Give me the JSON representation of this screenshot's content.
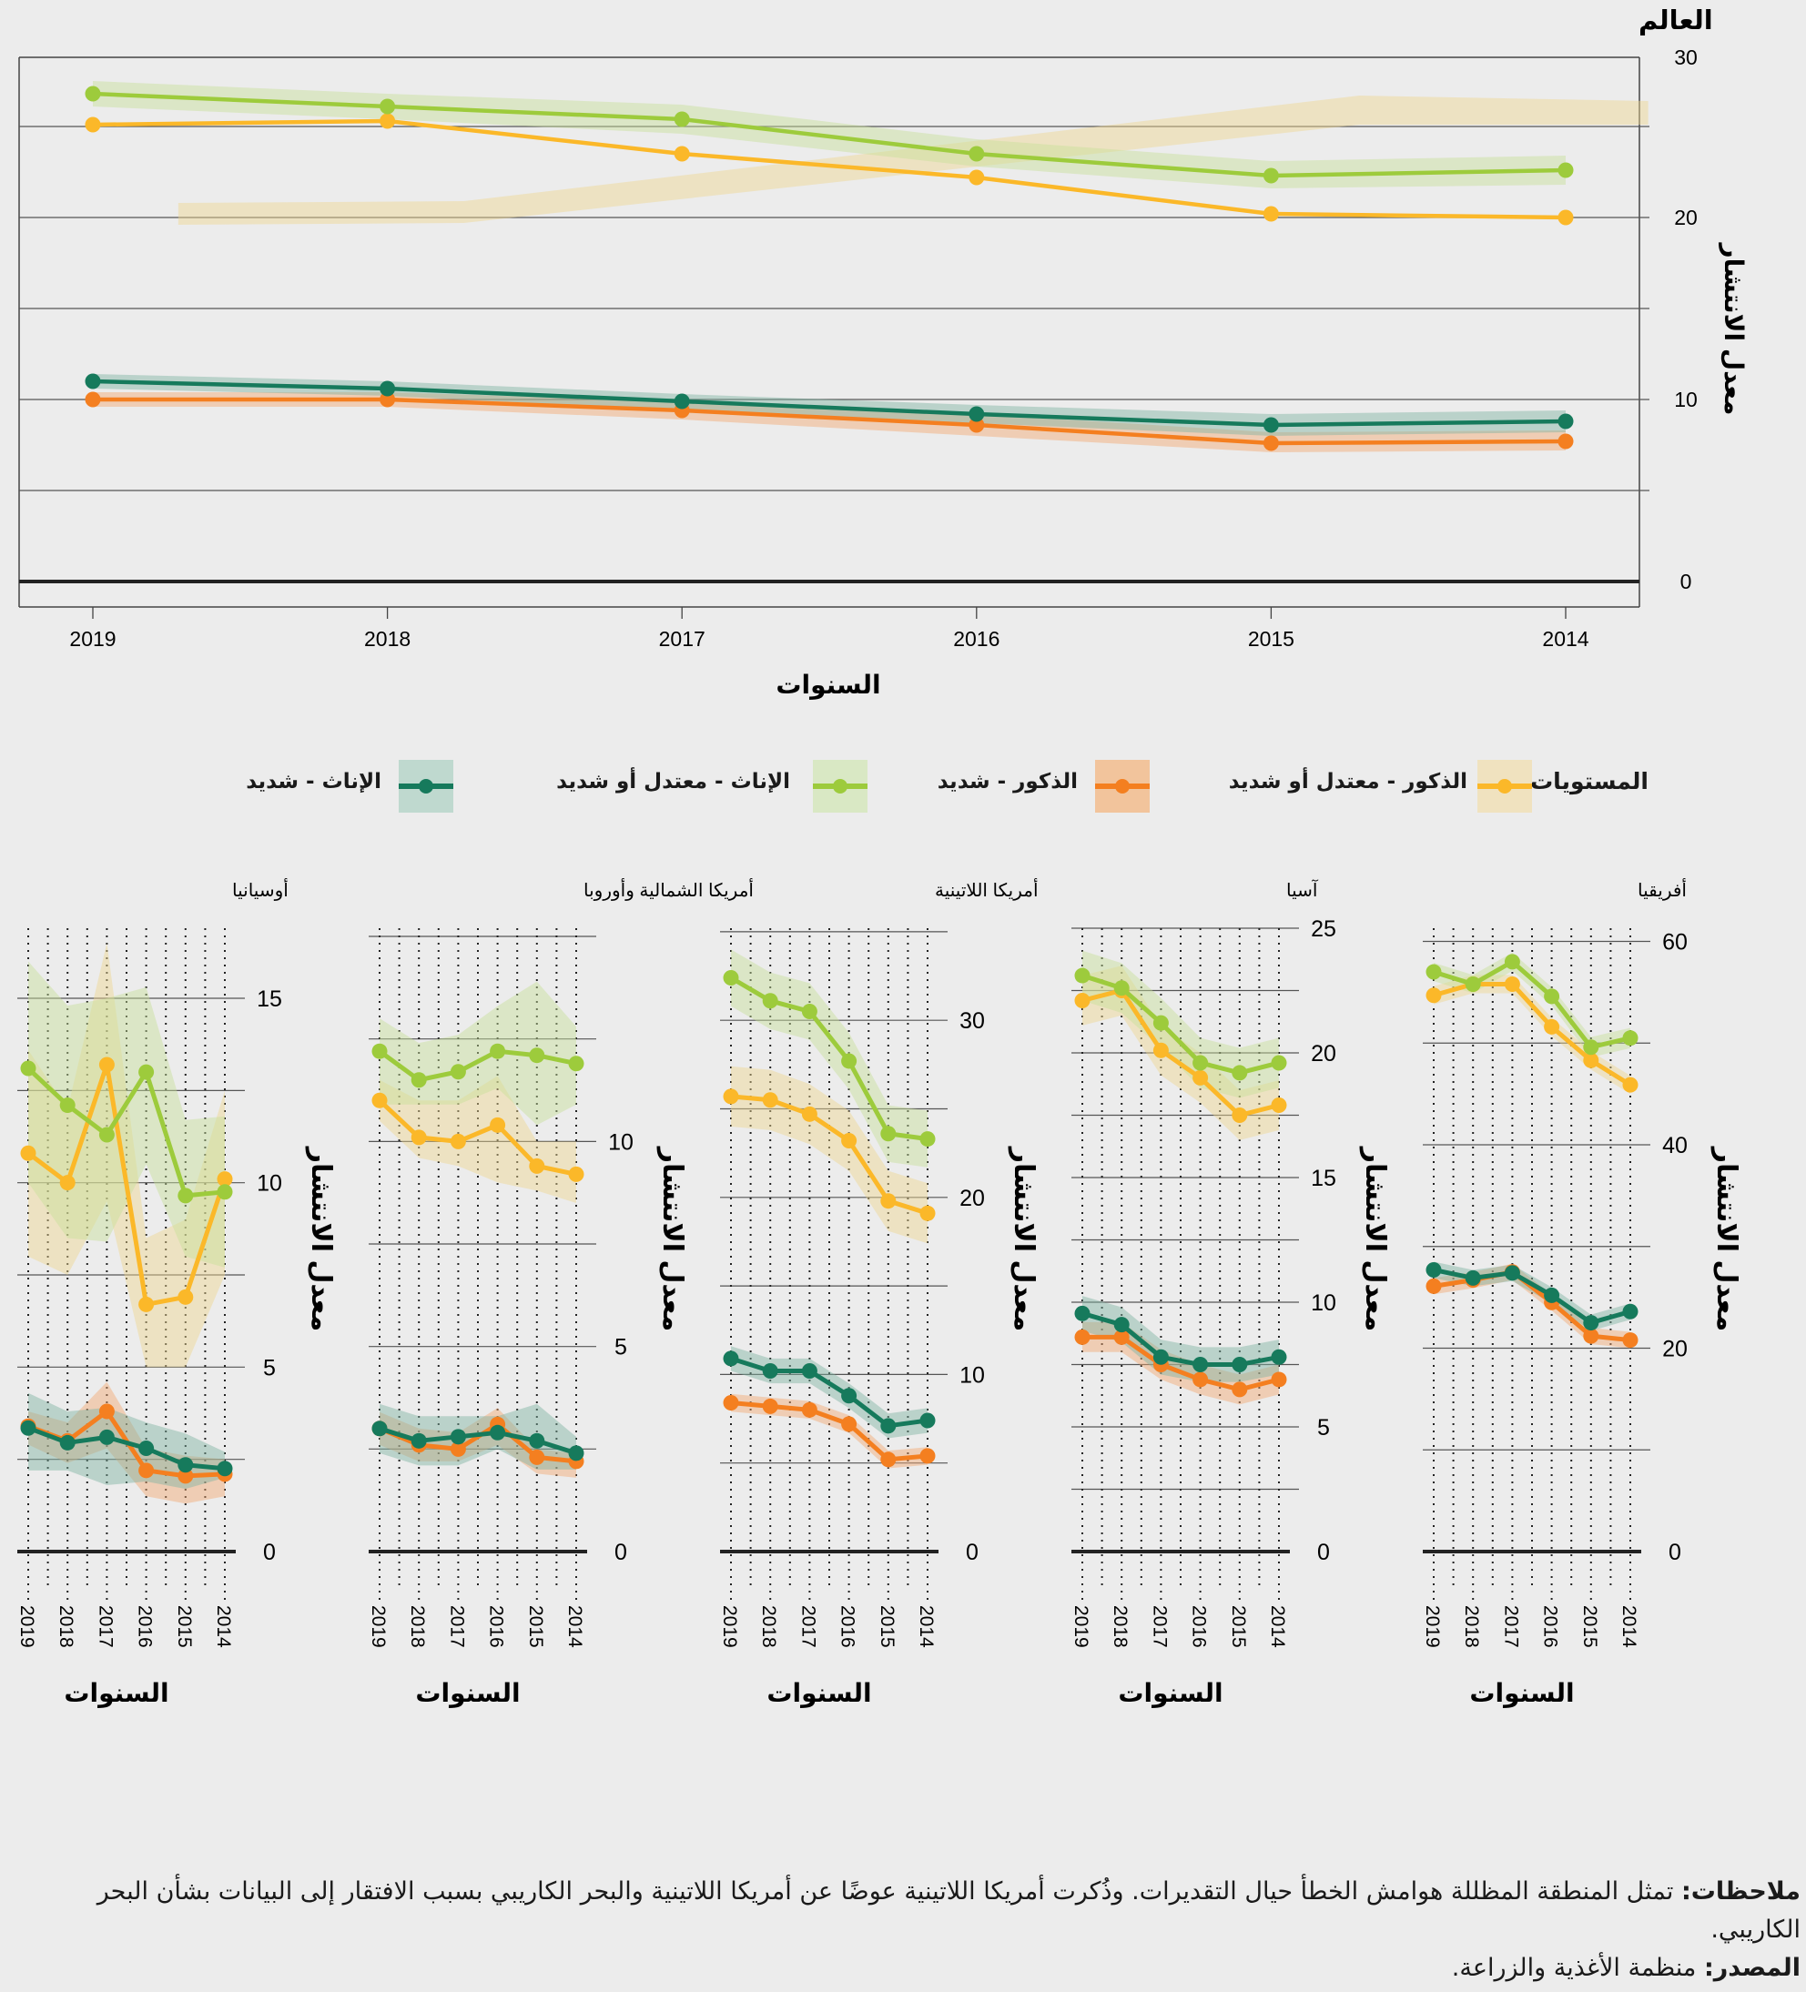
{
  "legend": {
    "title": "المستويات",
    "items": [
      {
        "label": "الذكور - معتدل أو شديد",
        "color": "#fbb829",
        "band": "#f0e2bf"
      },
      {
        "label": "الذكور - شديد",
        "color": "#f47f20",
        "band": "#f2c49c"
      },
      {
        "label": "الإناث - معتدل أو شديد",
        "color": "#9dcb3c",
        "band": "#d9e8c4"
      },
      {
        "label": "الإناث - شديد",
        "color": "#167a5c",
        "band": "#bfd9cf"
      }
    ]
  },
  "notes": {
    "notes_label": "ملاحظات:",
    "notes_text": " تمثل المنطقة المظللة هوامش الخطأ حيال التقديرات. وذُكرت أمريكا اللاتينية عوضًا عن أمريكا اللاتينية والبحر الكاريبي بسبب الافتقار إلى البيانات بشأن البحر الكاريبي.",
    "source_label": "المصدر:",
    "source_text": " منظمة الأغذية والزراعة."
  },
  "chart_data": [
    {
      "type": "line",
      "title": "العالم",
      "xlabel": "السنوات",
      "ylabel": "معدل الانتشار",
      "x": [
        2019,
        2018,
        2017,
        2016,
        2015,
        2014
      ],
      "ylim": [
        0,
        28.8
      ],
      "yticks": [
        0,
        10,
        20,
        30
      ],
      "grid_step": 5,
      "grid": true,
      "series": [
        {
          "name": "الذكور - معتدل أو شديد",
          "color": "#fbb829",
          "values": [
            25.1,
            25.3,
            23.5,
            22.2,
            20.2,
            20.0
          ],
          "band_drawn": {
            "x": [
              2018.71,
              2017.74,
              2014.7,
              2013.72
            ],
            "lower": [
              19.6,
              19.7,
              25.1,
              25.1
            ],
            "upper": [
              20.8,
              20.9,
              26.7,
              26.4
            ]
          }
        },
        {
          "name": "الذكور - شديد",
          "color": "#f47f20",
          "values": [
            10.0,
            10.0,
            9.4,
            8.6,
            7.6,
            7.7
          ],
          "lower": [
            9.6,
            9.6,
            8.9,
            8.0,
            7.1,
            7.2
          ],
          "upper": [
            10.4,
            10.4,
            9.9,
            9.2,
            8.2,
            8.3
          ]
        },
        {
          "name": "الإناث - معتدل أو شديد",
          "color": "#9dcb3c",
          "values": [
            26.8,
            26.1,
            25.4,
            23.5,
            22.3,
            22.6
          ],
          "lower": [
            26.1,
            25.4,
            24.6,
            22.8,
            21.6,
            21.8
          ],
          "upper": [
            27.5,
            26.8,
            26.2,
            24.3,
            23.1,
            23.4
          ]
        },
        {
          "name": "الإناث - شديد",
          "color": "#167a5c",
          "values": [
            11.0,
            10.6,
            9.9,
            9.2,
            8.6,
            8.8
          ],
          "lower": [
            10.6,
            10.2,
            9.4,
            8.7,
            8.0,
            8.2
          ],
          "upper": [
            11.4,
            11.0,
            10.3,
            9.7,
            9.2,
            9.4
          ]
        }
      ]
    },
    {
      "type": "line",
      "title": "أفريقيا",
      "xlabel": "السنوات",
      "ylabel": "معدل الانتشار",
      "x": [
        2019,
        2018,
        2017,
        2016,
        2015,
        2014
      ],
      "ylim": [
        0,
        61.3
      ],
      "yticks": [
        0,
        20,
        40,
        60
      ],
      "grid_step": 10,
      "grid": true,
      "series": [
        {
          "name": "الذكور - معتدل أو شديد",
          "color": "#fbb829",
          "values": [
            54.7,
            55.8,
            55.8,
            51.6,
            48.3,
            45.9
          ],
          "lower": [
            53.8,
            54.9,
            54.9,
            50.7,
            47.4,
            45.0
          ],
          "upper": [
            55.6,
            56.7,
            56.7,
            52.5,
            49.2,
            46.8
          ]
        },
        {
          "name": "الذكور - شديد",
          "color": "#f47f20",
          "values": [
            26.1,
            26.7,
            27.5,
            24.5,
            21.2,
            20.8
          ],
          "lower": [
            25.3,
            25.9,
            26.7,
            23.7,
            20.4,
            20.0
          ],
          "upper": [
            26.9,
            27.5,
            28.3,
            25.3,
            22.0,
            21.6
          ]
        },
        {
          "name": "الإناث - معتدل أو شديد",
          "color": "#9dcb3c",
          "values": [
            57.0,
            55.8,
            58.0,
            54.6,
            49.6,
            50.5
          ],
          "lower": [
            56.1,
            54.9,
            57.1,
            53.7,
            48.6,
            49.5
          ],
          "upper": [
            57.9,
            56.7,
            58.9,
            55.5,
            50.6,
            51.5
          ]
        },
        {
          "name": "الإناث - شديد",
          "color": "#167a5c",
          "values": [
            27.7,
            26.9,
            27.4,
            25.2,
            22.5,
            23.6
          ],
          "lower": [
            26.9,
            26.1,
            26.6,
            24.4,
            21.7,
            22.8
          ],
          "upper": [
            28.5,
            27.7,
            28.2,
            26.0,
            23.3,
            24.4
          ]
        }
      ]
    },
    {
      "type": "line",
      "title": "آسيا",
      "xlabel": "السنوات",
      "ylabel": "معدل الانتشار",
      "x": [
        2019,
        2018,
        2017,
        2016,
        2015,
        2014
      ],
      "ylim": [
        0,
        25
      ],
      "yticks": [
        0,
        5,
        10,
        15,
        20,
        25
      ],
      "grid_step": 2.5,
      "grid": true,
      "series": [
        {
          "name": "الذكور - معتدل أو شديد",
          "color": "#fbb829",
          "values": [
            22.1,
            22.5,
            20.1,
            19.0,
            17.5,
            17.9
          ],
          "lower": [
            21.1,
            21.5,
            19.1,
            18.0,
            16.5,
            16.9
          ],
          "upper": [
            23.1,
            23.5,
            21.1,
            20.0,
            18.5,
            18.9
          ]
        },
        {
          "name": "الذكور - شديد",
          "color": "#f47f20",
          "values": [
            8.6,
            8.6,
            7.5,
            6.9,
            6.5,
            6.9
          ],
          "lower": [
            8.0,
            8.0,
            6.9,
            6.3,
            5.9,
            6.3
          ],
          "upper": [
            9.2,
            9.2,
            8.1,
            7.5,
            7.1,
            7.5
          ]
        },
        {
          "name": "الإناث - معتدل أو شديد",
          "color": "#9dcb3c",
          "values": [
            23.1,
            22.6,
            21.2,
            19.6,
            19.2,
            19.6
          ],
          "lower": [
            22.1,
            21.6,
            20.2,
            18.6,
            18.2,
            18.6
          ],
          "upper": [
            24.1,
            23.6,
            22.2,
            20.6,
            20.2,
            20.6
          ]
        },
        {
          "name": "الإناث - شديد",
          "color": "#167a5c",
          "values": [
            9.55,
            9.1,
            7.8,
            7.5,
            7.5,
            7.8
          ],
          "lower": [
            8.85,
            8.4,
            7.1,
            6.8,
            6.8,
            7.1
          ],
          "upper": [
            10.25,
            9.8,
            8.5,
            8.2,
            8.2,
            8.5
          ]
        }
      ]
    },
    {
      "type": "line",
      "title": "أمريكا اللاتينية",
      "xlabel": "السنوات",
      "ylabel": "معدل الانتشار",
      "x": [
        2019,
        2018,
        2017,
        2016,
        2015,
        2014
      ],
      "ylim": [
        0,
        35.2
      ],
      "yticks": [
        0,
        10,
        20,
        30
      ],
      "grid_step": 5,
      "grid": true,
      "series": [
        {
          "name": "الذكور - معتدل أو شديد",
          "color": "#fbb829",
          "values": [
            25.7,
            25.5,
            24.7,
            23.2,
            19.8,
            19.1
          ],
          "lower": [
            24.0,
            23.8,
            23.0,
            21.5,
            18.1,
            17.4
          ],
          "upper": [
            27.4,
            27.2,
            26.4,
            24.9,
            21.5,
            20.8
          ]
        },
        {
          "name": "الذكور - شديد",
          "color": "#f47f20",
          "values": [
            8.4,
            8.2,
            8.0,
            7.2,
            5.2,
            5.4
          ],
          "lower": [
            7.9,
            7.7,
            7.5,
            6.7,
            4.7,
            4.9
          ],
          "upper": [
            8.9,
            8.7,
            8.5,
            7.7,
            5.7,
            5.9
          ]
        },
        {
          "name": "الإناث - معتدل أو شديد",
          "color": "#9dcb3c",
          "values": [
            32.4,
            31.1,
            30.5,
            27.7,
            23.6,
            23.3
          ],
          "lower": [
            30.8,
            29.5,
            28.9,
            26.1,
            22.0,
            21.7
          ],
          "upper": [
            34.0,
            32.7,
            32.1,
            29.3,
            25.2,
            24.9
          ]
        },
        {
          "name": "الإناث - شديد",
          "color": "#167a5c",
          "values": [
            10.9,
            10.2,
            10.2,
            8.8,
            7.1,
            7.4
          ],
          "lower": [
            10.2,
            9.5,
            9.5,
            8.1,
            6.4,
            6.7
          ],
          "upper": [
            11.6,
            10.9,
            10.9,
            9.5,
            7.8,
            8.1
          ]
        }
      ]
    },
    {
      "type": "line",
      "title": "أمريكا الشمالية وأوروبا",
      "xlabel": "السنوات",
      "ylabel": "معدل الانتشار",
      "x": [
        2019,
        2018,
        2017,
        2016,
        2015,
        2014
      ],
      "ylim": [
        0,
        15.2
      ],
      "yticks": [
        0,
        5,
        10
      ],
      "grid_step": 2.5,
      "grid": true,
      "series": [
        {
          "name": "الذكور - معتدل أو شديد",
          "color": "#fbb829",
          "values": [
            11.0,
            10.1,
            10.0,
            10.4,
            9.4,
            9.2
          ],
          "lower": [
            10.5,
            9.6,
            9.4,
            9.0,
            8.8,
            8.5
          ],
          "upper": [
            11.5,
            11.0,
            11.0,
            11.6,
            10.0,
            10.0
          ]
        },
        {
          "name": "الذكور - شديد",
          "color": "#f47f20",
          "values": [
            3.0,
            2.6,
            2.5,
            3.1,
            2.3,
            2.2
          ],
          "lower": [
            2.6,
            2.2,
            2.2,
            2.6,
            1.9,
            1.8
          ],
          "upper": [
            3.4,
            3.0,
            2.9,
            3.5,
            2.5,
            2.4
          ]
        },
        {
          "name": "الإناث - معتدل أو شديد",
          "color": "#9dcb3c",
          "values": [
            12.2,
            11.5,
            11.7,
            12.2,
            12.1,
            11.9
          ],
          "lower": [
            10.9,
            10.9,
            10.9,
            11.3,
            10.4,
            10.9
          ],
          "upper": [
            13.0,
            12.4,
            12.6,
            13.3,
            13.9,
            12.8
          ]
        },
        {
          "name": "الإناث - شديد",
          "color": "#167a5c",
          "values": [
            3.0,
            2.7,
            2.8,
            2.9,
            2.7,
            2.4
          ],
          "lower": [
            2.4,
            2.1,
            2.1,
            2.5,
            2.0,
            2.0
          ],
          "upper": [
            3.6,
            3.3,
            3.3,
            3.3,
            3.6,
            2.8
          ]
        }
      ]
    },
    {
      "type": "line",
      "title": "أوسيانيا",
      "xlabel": "السنوات",
      "ylabel": "معدل الانتشار",
      "x": [
        2019,
        2018,
        2017,
        2016,
        2015,
        2014
      ],
      "ylim": [
        0,
        16.9
      ],
      "yticks": [
        0,
        5,
        10,
        15
      ],
      "grid_step": 2.5,
      "grid": true,
      "series": [
        {
          "name": "الذكور - معتدل أو شديد",
          "color": "#fbb829",
          "values": [
            10.8,
            10.0,
            13.2,
            6.7,
            6.9,
            10.1
          ],
          "lower": [
            8.0,
            7.5,
            9.5,
            5.0,
            5.0,
            7.5
          ],
          "upper": [
            13.6,
            12.0,
            16.5,
            8.5,
            9.0,
            12.5
          ]
        },
        {
          "name": "الذكور - شديد",
          "color": "#f47f20",
          "values": [
            3.4,
            3.0,
            3.8,
            2.2,
            2.05,
            2.1
          ],
          "lower": [
            2.9,
            2.4,
            2.8,
            1.5,
            1.3,
            1.5
          ],
          "upper": [
            3.8,
            3.5,
            4.6,
            2.8,
            2.6,
            2.5
          ]
        },
        {
          "name": "الإناث - معتدل أو شديد",
          "color": "#9dcb3c",
          "values": [
            13.1,
            12.1,
            11.3,
            13.0,
            9.65,
            9.75
          ],
          "lower": [
            10.0,
            8.5,
            8.4,
            10.5,
            8.0,
            7.7
          ],
          "upper": [
            16.0,
            14.8,
            15.0,
            15.3,
            11.7,
            11.8
          ]
        },
        {
          "name": "الإناث - شديد",
          "color": "#167a5c",
          "values": [
            3.35,
            2.95,
            3.1,
            2.8,
            2.35,
            2.25
          ],
          "lower": [
            2.2,
            2.2,
            1.8,
            1.9,
            1.7,
            2.0
          ],
          "upper": [
            4.3,
            3.8,
            3.9,
            3.5,
            3.2,
            2.7
          ]
        }
      ]
    }
  ]
}
